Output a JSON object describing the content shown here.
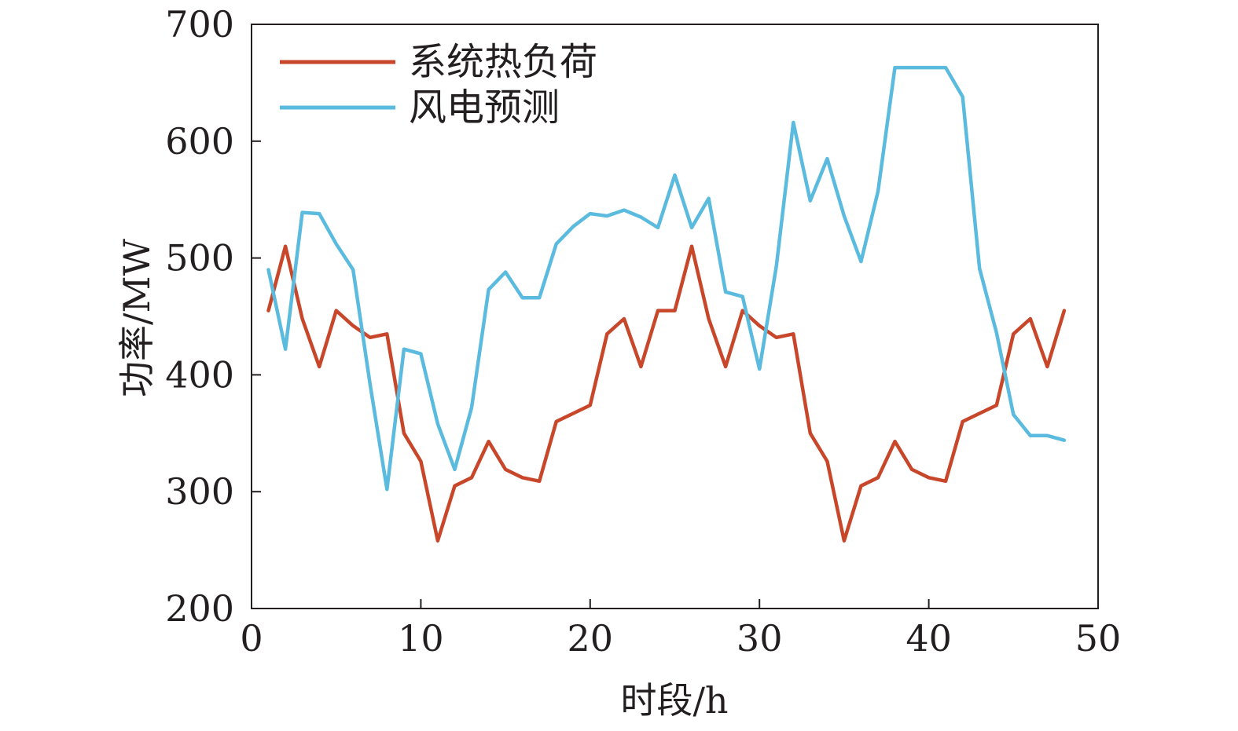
{
  "chart_data": {
    "type": "line",
    "xlabel": "时段/h",
    "ylabel": "功率/MW",
    "xlim": [
      0,
      50
    ],
    "ylim": [
      200,
      700
    ],
    "xticks": [
      0,
      10,
      20,
      30,
      40,
      50
    ],
    "yticks": [
      200,
      300,
      400,
      500,
      600,
      700
    ],
    "grid": false,
    "legend_position": "top-left",
    "x": [
      1,
      2,
      3,
      4,
      5,
      6,
      7,
      8,
      9,
      10,
      11,
      12,
      13,
      14,
      15,
      16,
      17,
      18,
      19,
      20,
      21,
      22,
      23,
      24,
      25,
      26,
      27,
      28,
      29,
      30,
      31,
      32,
      33,
      34,
      35,
      36,
      37,
      38,
      39,
      40,
      41,
      42,
      43,
      44,
      45,
      46,
      47,
      48
    ],
    "series": [
      {
        "name": "系统热负荷",
        "color": "#c8472a",
        "values": [
          455,
          510,
          448,
          407,
          455,
          442,
          432,
          435,
          350,
          326,
          258,
          305,
          312,
          343,
          319,
          312,
          309,
          360,
          367,
          374,
          435,
          448,
          407,
          455,
          455,
          510,
          448,
          407,
          455,
          442,
          432,
          435,
          350,
          326,
          258,
          305,
          312,
          343,
          319,
          312,
          309,
          360,
          367,
          374,
          435,
          448,
          407,
          455
        ]
      },
      {
        "name": "风电预测",
        "color": "#5bbbdf",
        "values": [
          490,
          422,
          539,
          538,
          512,
          490,
          392,
          302,
          422,
          418,
          358,
          319,
          372,
          473,
          488,
          466,
          466,
          512,
          527,
          538,
          536,
          541,
          535,
          526,
          571,
          526,
          551,
          471,
          467,
          405,
          493,
          616,
          549,
          585,
          536,
          497,
          557,
          663,
          663,
          663,
          663,
          638,
          491,
          436,
          366,
          348,
          348,
          344
        ]
      }
    ]
  }
}
